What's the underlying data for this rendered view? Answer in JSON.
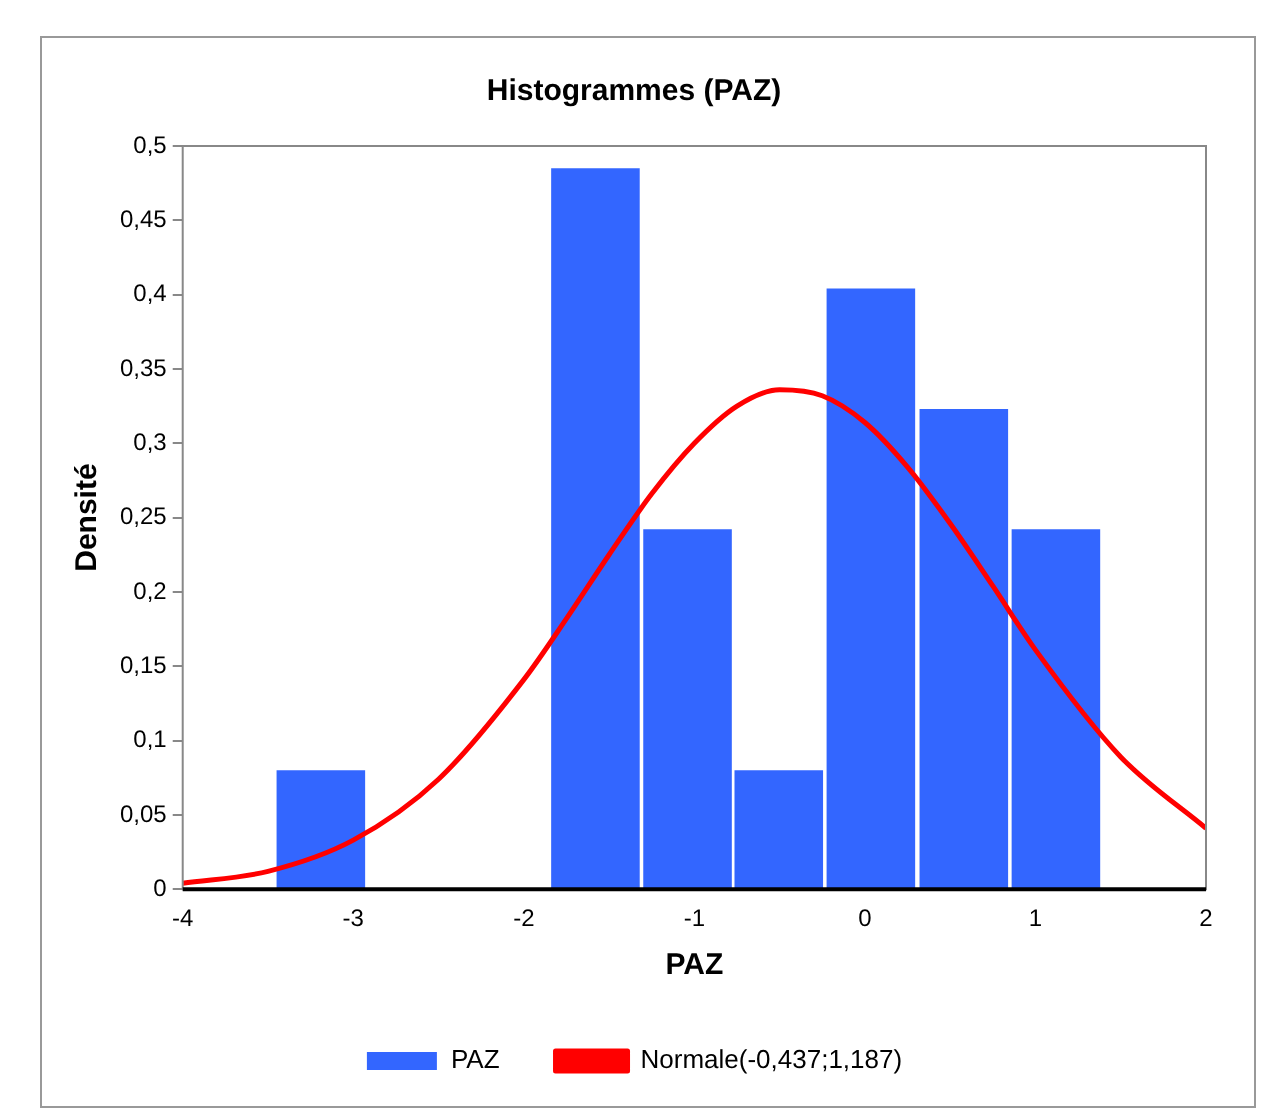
{
  "chart_data": {
    "type": "histogram",
    "title": "Histogrammes (PAZ)",
    "xlabel": "PAZ",
    "ylabel": "Densité",
    "bins": [
      -3.46,
      -2.92,
      -2.38,
      -1.85,
      -1.31,
      -0.77,
      -0.24,
      0.31,
      0.85,
      1.39
    ],
    "series": [
      {
        "name": "PAZ",
        "color": "#3366ff",
        "values": [
          0.081,
          0,
          0,
          0.486,
          0.243,
          0.081,
          0.405,
          0.324,
          0.243
        ]
      },
      {
        "name": "Normale(-0,437;1,187)",
        "type": "line",
        "color": "#ff0000",
        "x": [
          -4,
          -3.5,
          -3,
          -2.5,
          -2,
          -1.75,
          -1.5,
          -1.25,
          -1,
          -0.75,
          -0.5,
          -0.25,
          0,
          0.25,
          0.5,
          0.75,
          1,
          1.5,
          2
        ],
        "values": [
          0.004,
          0.012,
          0.033,
          0.074,
          0.141,
          0.182,
          0.225,
          0.266,
          0.3,
          0.325,
          0.336,
          0.332,
          0.314,
          0.284,
          0.246,
          0.204,
          0.161,
          0.089,
          0.041
        ]
      }
    ],
    "xlim": [
      -4,
      2
    ],
    "xticks": [
      -4,
      -3,
      -2,
      -1,
      0,
      1,
      2
    ],
    "ylim": [
      0,
      0.5
    ],
    "yticks": [
      0,
      {
        "value": 0.05,
        "label": "0,05"
      },
      {
        "value": 0.1,
        "label": "0,1"
      },
      {
        "value": 0.15,
        "label": "0,15"
      },
      {
        "value": 0.2,
        "label": "0,2"
      },
      {
        "value": 0.25,
        "label": "0,25"
      },
      {
        "value": 0.3,
        "label": "0,3"
      },
      {
        "value": 0.35,
        "label": "0,35"
      },
      {
        "value": 0.4,
        "label": "0,4"
      },
      {
        "value": 0.45,
        "label": "0,45"
      },
      {
        "value": 0.5,
        "label": "0,5"
      }
    ],
    "grid": false,
    "legend": "bottom",
    "marker": "none"
  }
}
